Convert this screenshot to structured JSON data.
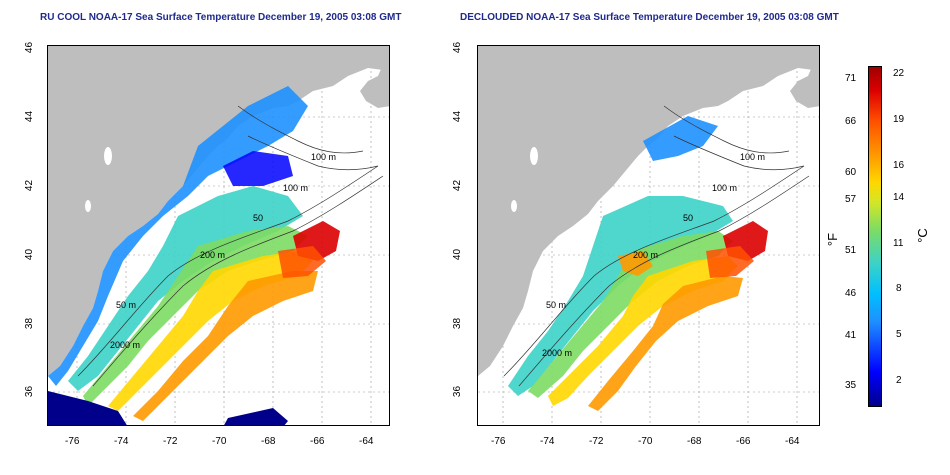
{
  "left_panel": {
    "title": "RU COOL NOAA-17 Sea Surface Temperature December 19, 2005 03:08 GMT",
    "x_ticks": [
      "-76",
      "-74",
      "-72",
      "-70",
      "-68",
      "-66",
      "-64"
    ],
    "y_ticks": [
      "36",
      "38",
      "40",
      "42",
      "44",
      "46"
    ],
    "contour_labels": [
      "100 m",
      "100 m",
      "50",
      "200 m",
      "50 m",
      "2000 m"
    ]
  },
  "right_panel": {
    "title": "DECLOUDED NOAA-17 Sea Surface Temperature December 19, 2005 03:08 GMT",
    "x_ticks": [
      "-76",
      "-74",
      "-72",
      "-70",
      "-68",
      "-66",
      "-64"
    ],
    "y_ticks": [
      "36",
      "38",
      "40",
      "42",
      "44",
      "46"
    ],
    "contour_labels": [
      "100 m",
      "100 m",
      "50",
      "200 m",
      "50 m",
      "2000 m"
    ]
  },
  "colorbar": {
    "fahrenheit_unit": "°F",
    "celsius_unit": "°C",
    "fahrenheit_ticks": [
      "71",
      "66",
      "60",
      "57",
      "51",
      "46",
      "41",
      "35"
    ],
    "celsius_ticks": [
      "22",
      "19",
      "16",
      "14",
      "11",
      "8",
      "5",
      "2"
    ],
    "celsius_range": [
      0,
      23
    ],
    "colors": [
      "#00008b",
      "#0000ff",
      "#1e90ff",
      "#00bfff",
      "#3cd2c8",
      "#7ddc64",
      "#d2e628",
      "#ffd700",
      "#ff9900",
      "#ff5000",
      "#dc0000",
      "#a00000"
    ]
  },
  "map": {
    "lon_range": [
      -77,
      -63
    ],
    "lat_range": [
      35,
      46
    ],
    "land_color": "#bebebe",
    "ocean_no_data_color": "#ffffff",
    "grid": "dotted"
  }
}
